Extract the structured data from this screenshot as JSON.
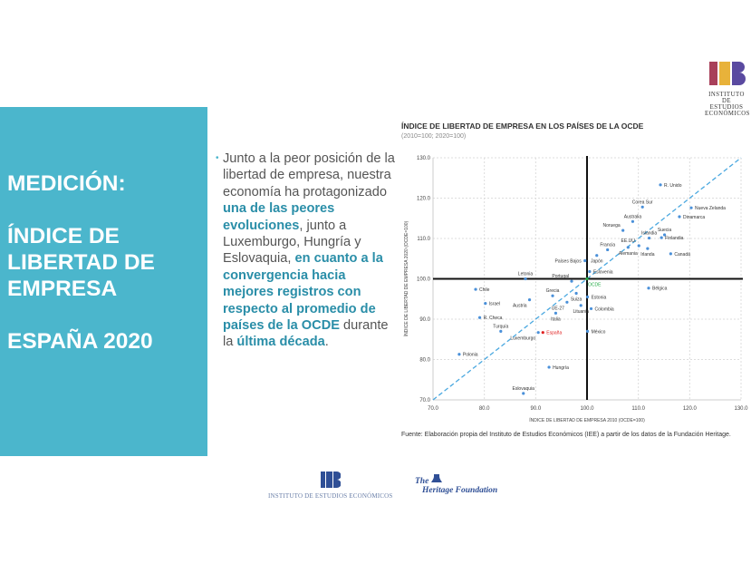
{
  "side_panel": {
    "title_lines": "MEDICIÓN:\n\nÍNDICE DE\nLIBERTAD DE\nEMPRESA\n\nESPAÑA 2020"
  },
  "bullet": {
    "t1": "Junto a la peor posición de la libertad de empresa, nuestra economía ha protagonizado ",
    "h1": "una de las peores evoluciones",
    "t2": ", junto a Luxemburgo, Hungría y Eslovaquia, ",
    "h2": "en cuanto a la convergencia hacia mejores registros con respecto al promedio de países de la OCDE",
    "t3": " durante la ",
    "h3": "última década",
    "t4": "."
  },
  "logos": {
    "iee_top": "INSTITUTO DE ESTUDIOS ECONÓMICOS",
    "iee_footer": "INSTITUTO DE ESTUDIOS ECONÓMICOS",
    "heritage_the": "The",
    "heritage_name": "Heritage Foundation"
  },
  "colors": {
    "accent": "#4bb6cc",
    "point": "#4a90d9",
    "spain": "#e02020",
    "oecd": "#22aa44",
    "trend": "#4aa8e0"
  },
  "chart_data": {
    "type": "scatter",
    "title": "ÍNDICE DE LIBERTAD DE EMPRESA EN LOS PAÍSES DE LA OCDE",
    "subtitle": "(2010=100; 2020=100)",
    "xlabel": "ÍNDICE DE LIBERTAD DE EMPRESA 2010 (OCDE=100)",
    "ylabel": "ÍNDICE DE LIBERTAD DE EMPRESA 2020 (OCDE=100)",
    "xlim": [
      70,
      130
    ],
    "ylim": [
      70,
      130
    ],
    "xticks": [
      "70.0",
      "80.0",
      "90.0",
      "100.0",
      "110.0",
      "120.0",
      "130.0"
    ],
    "yticks": [
      "70.0",
      "80.0",
      "90.0",
      "100.0",
      "110.0",
      "120.0",
      "130.0"
    ],
    "grid": true,
    "reference_lines": {
      "x": 100,
      "y": 100,
      "diagonal": "y=x"
    },
    "source": "Fuente: Elaboración propia del Instituto de Estudios Económicos (IEE) a partir de los datos de la Fundación Heritage.",
    "points": [
      {
        "name": "R. Unido",
        "x": 114.3,
        "y": 123.3,
        "pos": "right"
      },
      {
        "name": "Corea Sur",
        "x": 110.8,
        "y": 117.8,
        "pos": "above"
      },
      {
        "name": "Nueva Zelanda",
        "x": 120.3,
        "y": 117.6,
        "pos": "right"
      },
      {
        "name": "Dinamarca",
        "x": 118.0,
        "y": 115.4,
        "pos": "right"
      },
      {
        "name": "Australia",
        "x": 108.9,
        "y": 114.2,
        "pos": "above"
      },
      {
        "name": "Noruega",
        "x": 107.0,
        "y": 112.0,
        "pos": "aboveleft"
      },
      {
        "name": "Suecia",
        "x": 115.1,
        "y": 110.9,
        "pos": "above"
      },
      {
        "name": "Islandia",
        "x": 112.1,
        "y": 110.1,
        "pos": "above"
      },
      {
        "name": "Finlandia",
        "x": 114.5,
        "y": 110.2,
        "pos": "right"
      },
      {
        "name": "EE.UU.",
        "x": 110.1,
        "y": 108.2,
        "pos": "aboveleft"
      },
      {
        "name": "Irlanda",
        "x": 111.8,
        "y": 107.5,
        "pos": "below"
      },
      {
        "name": "Canadá",
        "x": 116.3,
        "y": 106.2,
        "pos": "right"
      },
      {
        "name": "Francia",
        "x": 104.0,
        "y": 107.2,
        "pos": "above"
      },
      {
        "name": "Alemania",
        "x": 108.0,
        "y": 107.8,
        "pos": "below"
      },
      {
        "name": "Japón",
        "x": 101.9,
        "y": 105.8,
        "pos": "below"
      },
      {
        "name": "Países Bajos",
        "x": 99.6,
        "y": 104.5,
        "pos": "left"
      },
      {
        "name": "Eslovenia",
        "x": 100.5,
        "y": 101.8,
        "pos": "right"
      },
      {
        "name": "Letonia",
        "x": 88.0,
        "y": 100.0,
        "pos": "above"
      },
      {
        "name": "Portugal",
        "x": 97.0,
        "y": 99.4,
        "pos": "aboveleft"
      },
      {
        "name": "Chile",
        "x": 78.3,
        "y": 97.4,
        "pos": "right"
      },
      {
        "name": "Israel",
        "x": 80.2,
        "y": 93.9,
        "pos": "right"
      },
      {
        "name": "R. Checa",
        "x": 79.1,
        "y": 90.4,
        "pos": "right"
      },
      {
        "name": "Turquía",
        "x": 83.2,
        "y": 87.0,
        "pos": "above"
      },
      {
        "name": "Austria",
        "x": 88.8,
        "y": 94.8,
        "pos": "belowleft"
      },
      {
        "name": "Grecia",
        "x": 93.3,
        "y": 95.8,
        "pos": "above"
      },
      {
        "name": "Suiza",
        "x": 97.9,
        "y": 96.4,
        "pos": "below"
      },
      {
        "name": "UE-27",
        "x": 96.1,
        "y": 94.2,
        "pos": "belowleft"
      },
      {
        "name": "Lituania",
        "x": 98.8,
        "y": 93.4,
        "pos": "below"
      },
      {
        "name": "Estonia",
        "x": 100.1,
        "y": 95.5,
        "pos": "right"
      },
      {
        "name": "Colombia",
        "x": 100.8,
        "y": 92.6,
        "pos": "right"
      },
      {
        "name": "Italia",
        "x": 93.9,
        "y": 91.5,
        "pos": "below"
      },
      {
        "name": "Luxemburgo",
        "x": 90.5,
        "y": 86.7,
        "pos": "belowleft"
      },
      {
        "name": "España",
        "x": 91.4,
        "y": 86.7,
        "pos": "right",
        "highlight": "spain"
      },
      {
        "name": "México",
        "x": 100.1,
        "y": 87.0,
        "pos": "right"
      },
      {
        "name": "Polonia",
        "x": 75.1,
        "y": 81.3,
        "pos": "right"
      },
      {
        "name": "Hungría",
        "x": 92.6,
        "y": 78.1,
        "pos": "right"
      },
      {
        "name": "Eslovaquia",
        "x": 87.6,
        "y": 71.6,
        "pos": "above"
      },
      {
        "name": "Bélgica",
        "x": 112.0,
        "y": 97.7,
        "pos": "right"
      },
      {
        "name": "OCDE",
        "x": 100.0,
        "y": 100.0,
        "pos": "belowright",
        "highlight": "oecd"
      }
    ]
  }
}
